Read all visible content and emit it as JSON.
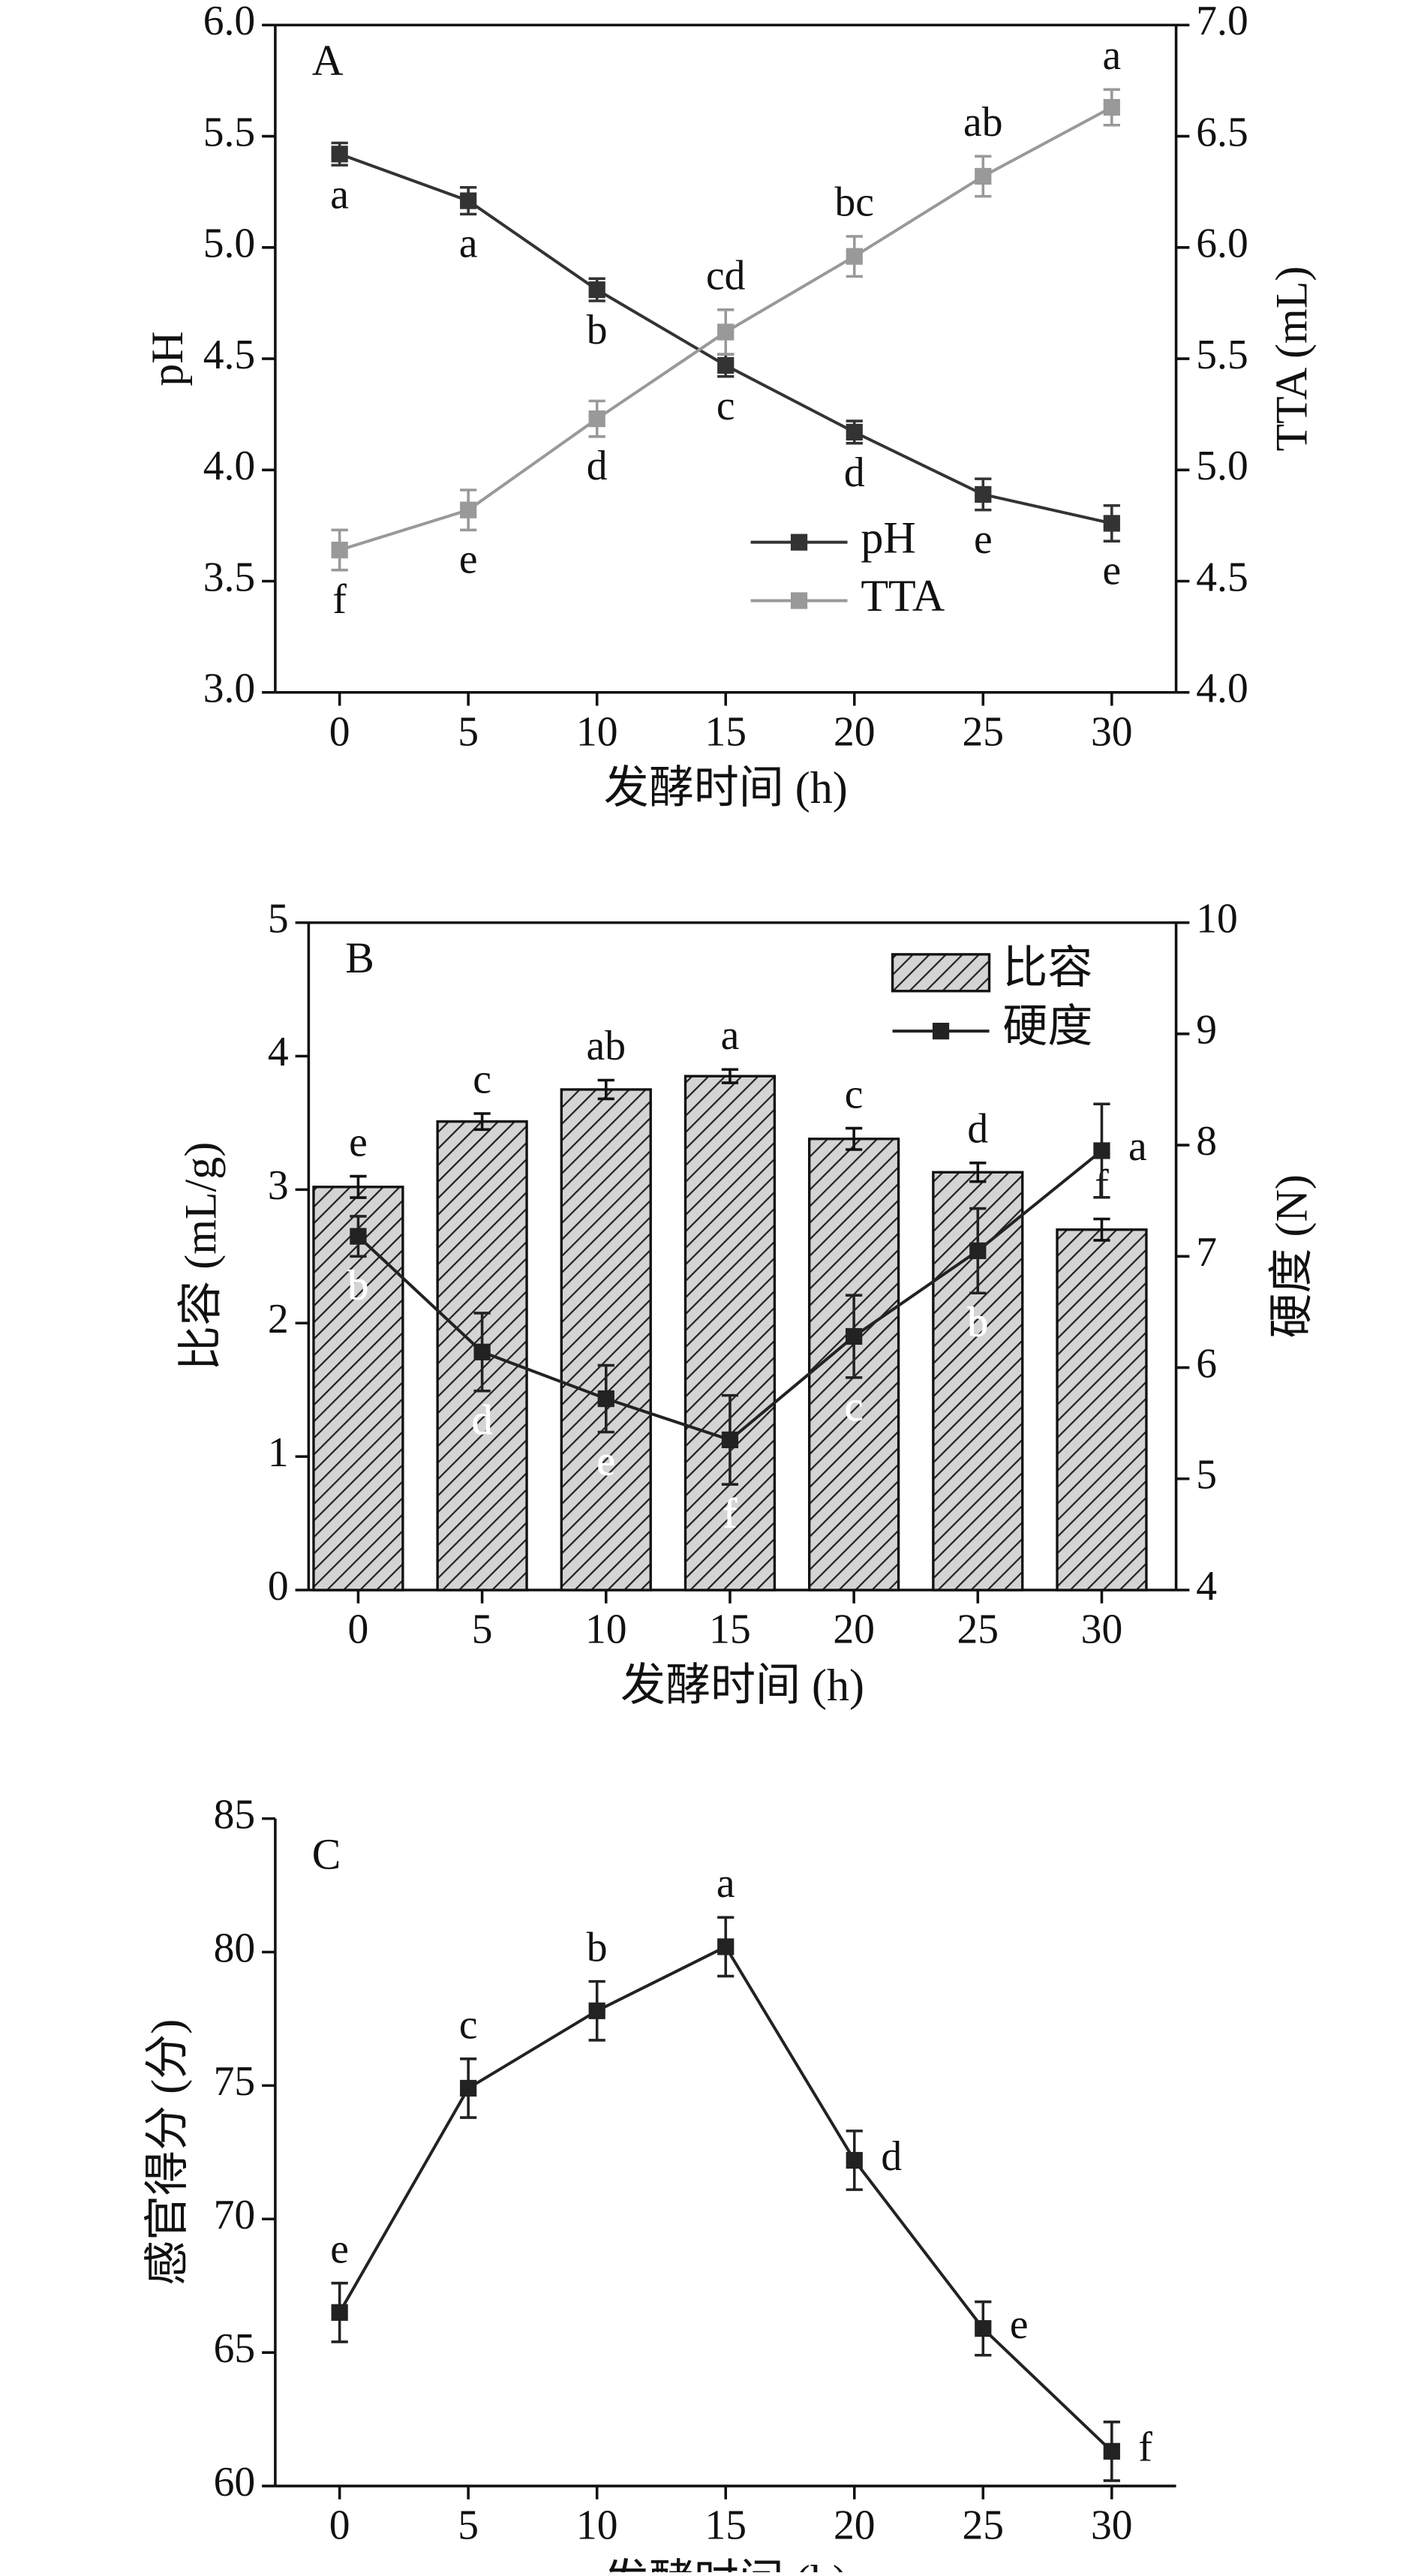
{
  "chart_data": [
    {
      "type": "line",
      "annotation": "A",
      "x_label": "发酵时间 (h)",
      "y_label": "pH",
      "y2_label": "TTA (mL)",
      "x": [
        0,
        5,
        10,
        15,
        20,
        25,
        30
      ],
      "xlim": [
        -2.5,
        32.5
      ],
      "xticks": [
        0,
        5,
        10,
        15,
        20,
        25,
        30
      ],
      "ylim": [
        3,
        6
      ],
      "yticks": [
        {
          "value": 3,
          "label": "3.0"
        },
        3.5,
        {
          "value": 4,
          "label": "4.0"
        },
        4.5,
        {
          "value": 5,
          "label": "5.0"
        },
        5.5,
        {
          "value": 6,
          "label": "6.0"
        }
      ],
      "y2lim": [
        4,
        7
      ],
      "y2ticks": [
        {
          "value": 4,
          "label": "4.0"
        },
        4.5,
        {
          "value": 5,
          "label": "5.0"
        },
        5.5,
        {
          "value": 6,
          "label": "6.0"
        },
        6.5,
        {
          "value": 7,
          "label": "7.0"
        }
      ],
      "legend": "lower center",
      "series": [
        {
          "name": "pH",
          "type": "line",
          "color": "#333333",
          "values": [
            5.42,
            5.21,
            4.81,
            4.47,
            4.17,
            3.89,
            3.76
          ],
          "errors": [
            0.05,
            0.06,
            0.05,
            0.05,
            0.05,
            0.07,
            0.08
          ],
          "letters": [
            "a",
            "a",
            "b",
            "c",
            "d",
            "e",
            "e"
          ]
        },
        {
          "name": "TTA",
          "type": "line",
          "axis": "y2",
          "color": "#999999",
          "values": [
            4.64,
            4.82,
            5.23,
            5.62,
            5.96,
            6.32,
            6.63
          ],
          "errors": [
            0.09,
            0.09,
            0.08,
            0.1,
            0.09,
            0.09,
            0.08
          ],
          "letters": [
            "f",
            "e",
            "d",
            "cd",
            "bc",
            "ab",
            "a"
          ]
        }
      ]
    },
    {
      "type": "combo",
      "annotation": "B",
      "x_label": "发酵时间 (h)",
      "y_label": "比容 (mL/g)",
      "y2_label": "硬度 (N)",
      "x": [
        0,
        5,
        10,
        15,
        20,
        25,
        30
      ],
      "xlim": [
        -2,
        33
      ],
      "xticks": [
        0,
        5,
        10,
        15,
        20,
        25,
        30
      ],
      "ylim": [
        0,
        5
      ],
      "yticks": [
        0,
        1,
        2,
        3,
        4,
        5
      ],
      "y2lim": [
        4,
        10
      ],
      "y2ticks": [
        4,
        5,
        6,
        7,
        8,
        9,
        10
      ],
      "legend": "upper right",
      "series": [
        {
          "name": "比容",
          "type": "bar",
          "color": "#cccccc",
          "values": [
            3.02,
            3.51,
            3.75,
            3.85,
            3.38,
            3.13,
            2.7
          ],
          "errors": [
            0.08,
            0.06,
            0.07,
            0.05,
            0.08,
            0.07,
            0.08
          ],
          "letters": [
            "e",
            "c",
            "ab",
            "a",
            "c",
            "d",
            "f"
          ]
        },
        {
          "name": "硬度",
          "type": "line",
          "axis": "y2",
          "color": "#222222",
          "values": [
            7.18,
            6.14,
            5.72,
            5.35,
            6.28,
            7.05,
            7.95
          ],
          "errors": [
            0.18,
            0.35,
            0.3,
            0.4,
            0.37,
            0.38,
            0.42
          ],
          "letters": [
            "b",
            "d",
            "e",
            "f",
            "c",
            "b",
            "a"
          ]
        }
      ]
    },
    {
      "type": "line",
      "annotation": "C",
      "x_label": "发酵时间 (h)",
      "y_label": "感官得分 (分)",
      "x": [
        0,
        5,
        10,
        15,
        20,
        25,
        30
      ],
      "xlim": [
        -2.5,
        32.5
      ],
      "xticks": [
        0,
        5,
        10,
        15,
        20,
        25,
        30
      ],
      "ylim": [
        60,
        85
      ],
      "yticks": [
        60,
        65,
        70,
        75,
        80,
        85
      ],
      "series": [
        {
          "type": "line",
          "color": "#222222",
          "values": [
            66.5,
            74.9,
            77.8,
            80.2,
            72.2,
            65.9,
            61.3
          ],
          "errors": [
            1.1,
            1.1,
            1.1,
            1.1,
            1.1,
            1.0,
            1.1
          ],
          "letters": [
            "e",
            "c",
            "b",
            "a",
            "d",
            "e",
            "f"
          ]
        }
      ]
    }
  ]
}
